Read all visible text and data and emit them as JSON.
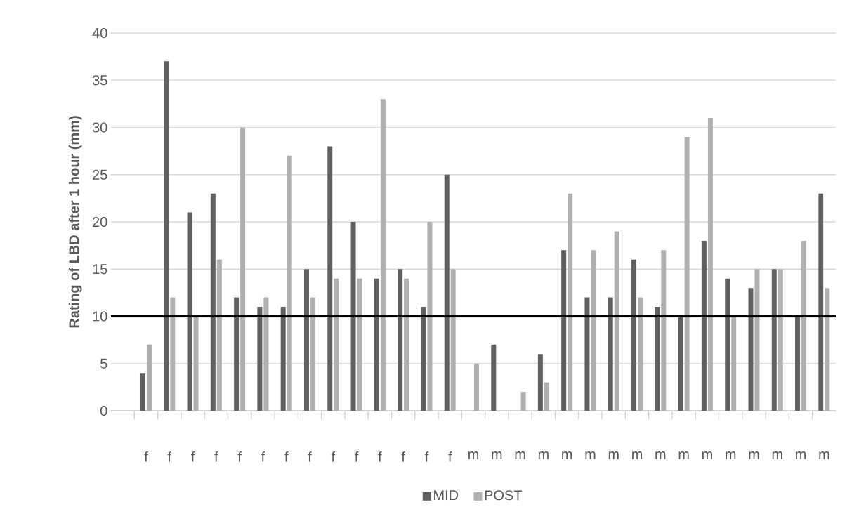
{
  "chart_data": {
    "type": "bar",
    "ylabel": "Rating of LBD after 1 hour (mm)",
    "categories": [
      null,
      "f",
      "f",
      "f",
      "f",
      "f",
      "f",
      "f",
      "f",
      "f",
      "f",
      "f",
      "f",
      "f",
      "f",
      "m",
      "m",
      "m",
      "m",
      "m",
      "m",
      "m",
      "m",
      "m",
      "m",
      "m",
      "m",
      "m",
      "m",
      "m",
      "m"
    ],
    "series": [
      {
        "name": "MID",
        "color": "#606060",
        "values": [
          null,
          4,
          37,
          21,
          23,
          12,
          11,
          11,
          15,
          28,
          20,
          14,
          15,
          11,
          25,
          0,
          7,
          0,
          6,
          17,
          12,
          12,
          16,
          11,
          10,
          18,
          14,
          13,
          15,
          10,
          23
        ]
      },
      {
        "name": "POST",
        "color": "#b0b0b0",
        "values": [
          null,
          7,
          12,
          10,
          16,
          30,
          12,
          27,
          12,
          14,
          14,
          33,
          14,
          20,
          15,
          5,
          0,
          2,
          3,
          23,
          17,
          19,
          12,
          17,
          29,
          31,
          10,
          15,
          15,
          18,
          13
        ]
      }
    ],
    "ylim": [
      0,
      40
    ],
    "yticks": [
      0,
      5,
      10,
      15,
      20,
      25,
      30,
      35,
      40
    ],
    "ref_lines": [
      {
        "axis": "y",
        "value": 10,
        "color": "#000000"
      }
    ],
    "grid": "y",
    "legend": "bottom"
  }
}
